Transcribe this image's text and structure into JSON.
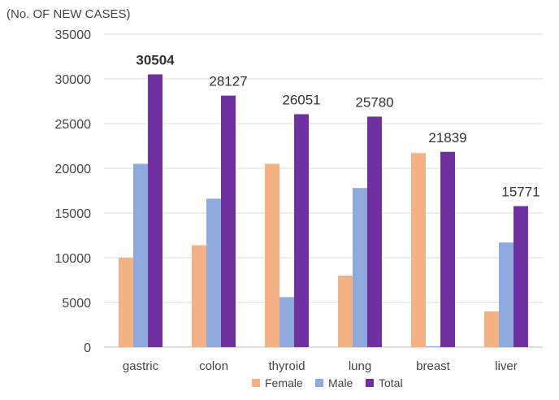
{
  "chart_data": {
    "type": "bar",
    "ylabel": "(No. OF NEW CASES)",
    "ylim": [
      0,
      35000
    ],
    "yticks": [
      0,
      5000,
      10000,
      15000,
      20000,
      25000,
      30000,
      35000
    ],
    "grid": true,
    "legend_position": "bottom",
    "categories": [
      "gastric",
      "colon",
      "thyroid",
      "lung",
      "breast",
      "liver"
    ],
    "series": [
      {
        "name": "Female",
        "color": "#F4B183",
        "values": [
          10000,
          11400,
          20500,
          8000,
          21700,
          4000
        ]
      },
      {
        "name": "Male",
        "color": "#8EA9DB",
        "values": [
          20500,
          16600,
          5600,
          17800,
          100,
          11700
        ]
      },
      {
        "name": "Total",
        "color": "#7030A0",
        "values": [
          30504,
          28127,
          26051,
          25780,
          21839,
          15771
        ]
      }
    ],
    "data_labels": {
      "series": "Total",
      "values": [
        "30504",
        "28127",
        "26051",
        "25780",
        "21839",
        "15771"
      ],
      "bold_index": 0
    }
  }
}
